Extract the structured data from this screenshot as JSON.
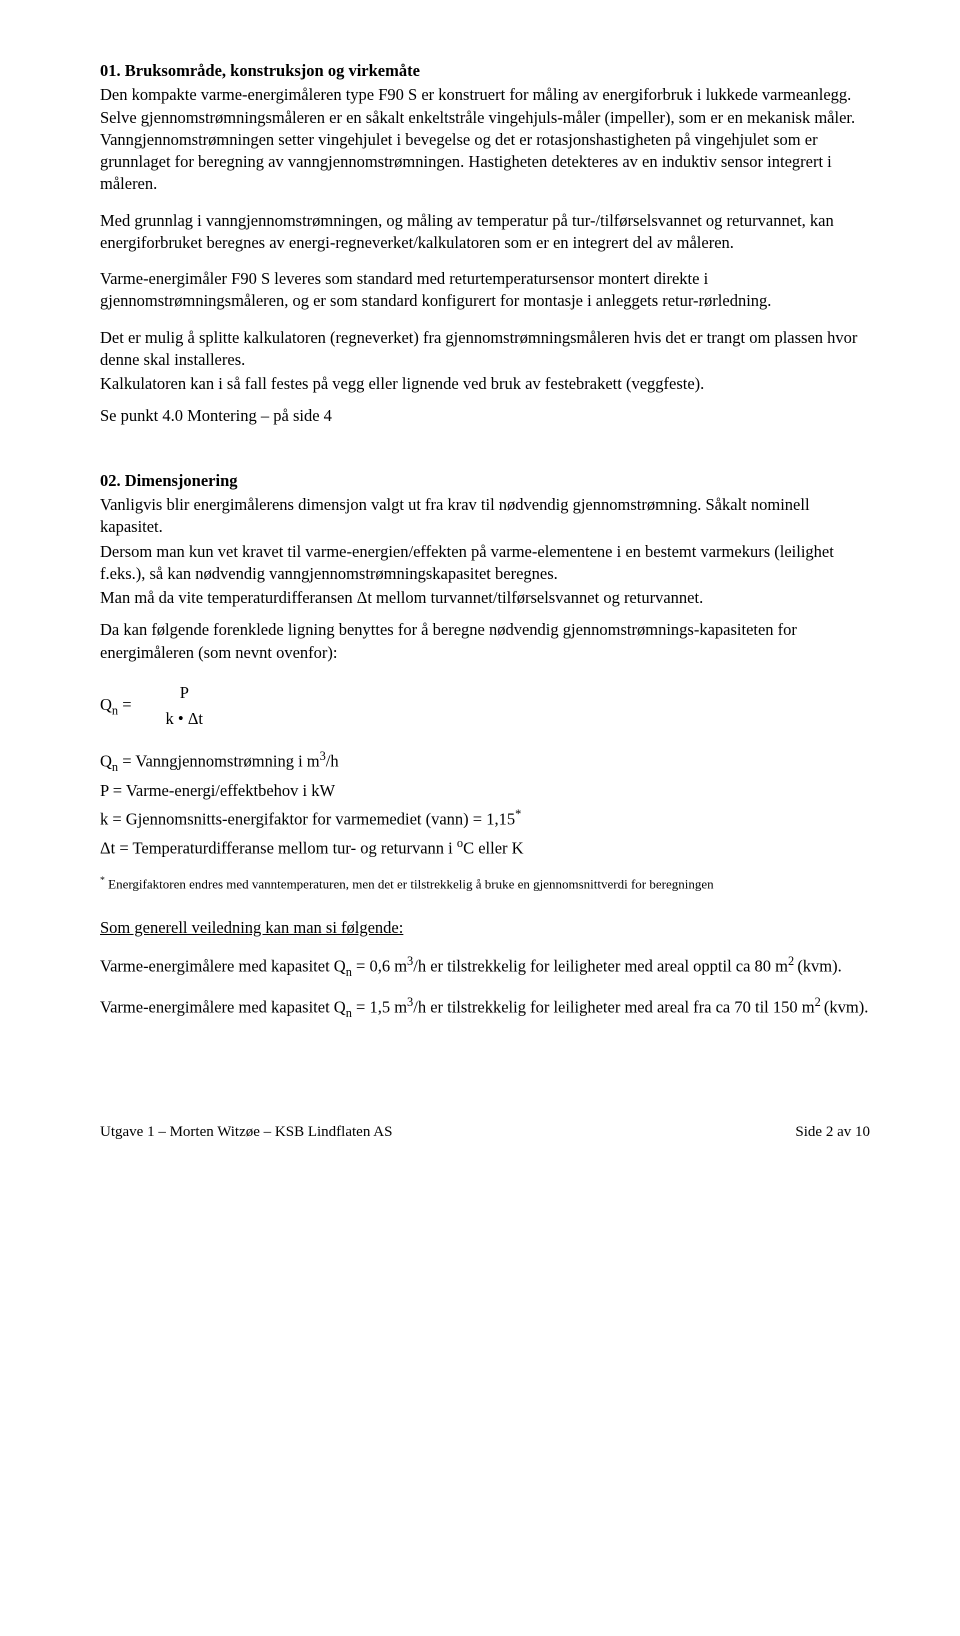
{
  "section01": {
    "title": "01. Bruksområde, konstruksjon og virkemåte",
    "p1": "Den kompakte varme-energimåleren type F90 S er konstruert for måling av energiforbruk i lukkede varmeanlegg. Selve gjennomstrømningsmåleren er en såkalt enkeltstråle vingehjuls-måler (impeller), som er en mekanisk måler. Vanngjennomstrømningen setter vingehjulet i bevegelse og det er rotasjonshastigheten på vingehjulet som er grunnlaget for beregning av vanngjennomstrømningen. Hastigheten detekteres av en induktiv sensor integrert i måleren.",
    "p2": "Med grunnlag i vanngjennomstrømningen, og måling av temperatur på tur-/tilførselsvannet og returvannet, kan energiforbruket beregnes av energi-regneverket/kalkulatoren som er en integrert del av måleren.",
    "p3": "Varme-energimåler F90 S leveres som standard med returtemperatursensor montert direkte i gjennomstrømningsmåleren, og er som standard konfigurert for montasje i anleggets retur-rørledning.",
    "p4": "Det er mulig å splitte kalkulatoren (regneverket) fra gjennomstrømningsmåleren hvis det er trangt om plassen hvor denne skal installeres.",
    "p5": "Kalkulatoren kan i så fall festes på vegg eller lignende ved bruk av festebrakett (veggfeste).",
    "p6": "Se punkt 4.0 Montering – på side 4"
  },
  "section02": {
    "title": "02. Dimensjonering",
    "p1": "Vanligvis blir energimålerens dimensjon valgt ut fra krav til nødvendig gjennomstrømning. Såkalt nominell kapasitet.",
    "p2": "Dersom man kun vet kravet til varme-energien/effekten på varme-elementene i en bestemt varmekurs (leilighet f.eks.), så kan nødvendig vanngjennomstrømningskapasitet beregnes.",
    "p3": "Man må da vite temperaturdifferansen Δt mellom turvannet/tilførselsvannet og returvannet.",
    "p4": "Da kan følgende forenklede ligning benyttes for å beregne nødvendig gjennomstrømnings-kapasiteten for energimåleren (som nevnt ovenfor):",
    "formula": {
      "lhs_var": "Q",
      "lhs_sub": "n",
      "eq": " = ",
      "numerator": "P",
      "denominator": "k • Δt"
    },
    "defs": {
      "d1_pre": "Q",
      "d1_sub": "n",
      "d1_post": " = Vanngjennomstrømning i m",
      "d1_sup": "3",
      "d1_tail": "/h",
      "d2": "P  =  Varme-energi/effektbehov i kW",
      "d3_pre": "k  =  Gjennomsnitts-energifaktor for varmemediet (vann) = 1,15",
      "d3_sup": "*",
      "d4_pre": "Δt =  Temperaturdifferanse mellom tur- og returvann i ",
      "d4_sup": "o",
      "d4_tail": "C eller K"
    },
    "footnote_pre": "*",
    "footnote": " Energifaktoren endres med vanntemperaturen, men det er tilstrekkelig  å bruke en gjennomsnittverdi for beregningen",
    "guide_title": "Som generell veiledning kan man si følgende:",
    "g1_a": "Varme-energimålere med kapasitet Q",
    "g1_sub": "n",
    "g1_b": " = 0,6 m",
    "g1_sup1": "3",
    "g1_c": "/h er tilstrekkelig for leiligheter med areal opptil ca 80 m",
    "g1_sup2": "2 ",
    "g1_d": "(kvm).",
    "g2_a": "Varme-energimålere med kapasitet Q",
    "g2_sub": "n",
    "g2_b": " = 1,5 m",
    "g2_sup1": "3",
    "g2_c": "/h er tilstrekkelig for leiligheter med areal fra ca 70 til 150 m",
    "g2_sup2": "2 ",
    "g2_d": "(kvm)."
  },
  "footer": {
    "left": "Utgave 1 – Morten Witzøe – KSB Lindflaten AS",
    "right": "Side 2 av 10"
  }
}
